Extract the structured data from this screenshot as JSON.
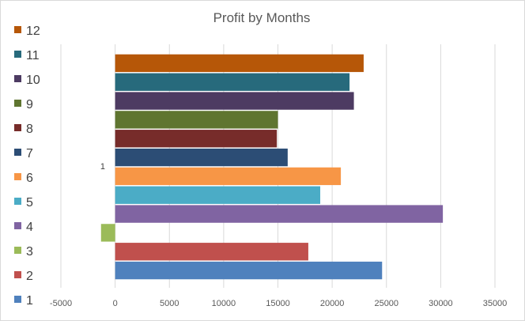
{
  "chart_data": {
    "type": "bar",
    "orientation": "horizontal",
    "title": "Profit by Months",
    "categories": [
      "1"
    ],
    "series": [
      {
        "name": "1",
        "values": [
          24600
        ],
        "color": "#4f81bd"
      },
      {
        "name": "2",
        "values": [
          17800
        ],
        "color": "#c0504d"
      },
      {
        "name": "3",
        "values": [
          -1300
        ],
        "color": "#9bbb59"
      },
      {
        "name": "4",
        "values": [
          30200
        ],
        "color": "#8064a2"
      },
      {
        "name": "5",
        "values": [
          18900
        ],
        "color": "#4bacc6"
      },
      {
        "name": "6",
        "values": [
          20800
        ],
        "color": "#f79646"
      },
      {
        "name": "7",
        "values": [
          15900
        ],
        "color": "#2c4d75"
      },
      {
        "name": "8",
        "values": [
          14900
        ],
        "color": "#772c2a"
      },
      {
        "name": "9",
        "values": [
          15000
        ],
        "color": "#5f7530"
      },
      {
        "name": "10",
        "values": [
          22000
        ],
        "color": "#4d3b62"
      },
      {
        "name": "11",
        "values": [
          21600
        ],
        "color": "#276a7c"
      },
      {
        "name": "12",
        "values": [
          22900
        ],
        "color": "#b65708"
      }
    ],
    "xlim": [
      -5000,
      35000
    ],
    "xticks": [
      "-5000",
      "0",
      "5000",
      "10000",
      "15000",
      "20000",
      "25000",
      "30000",
      "35000"
    ],
    "grid": "vertical",
    "legend_position": "left"
  }
}
